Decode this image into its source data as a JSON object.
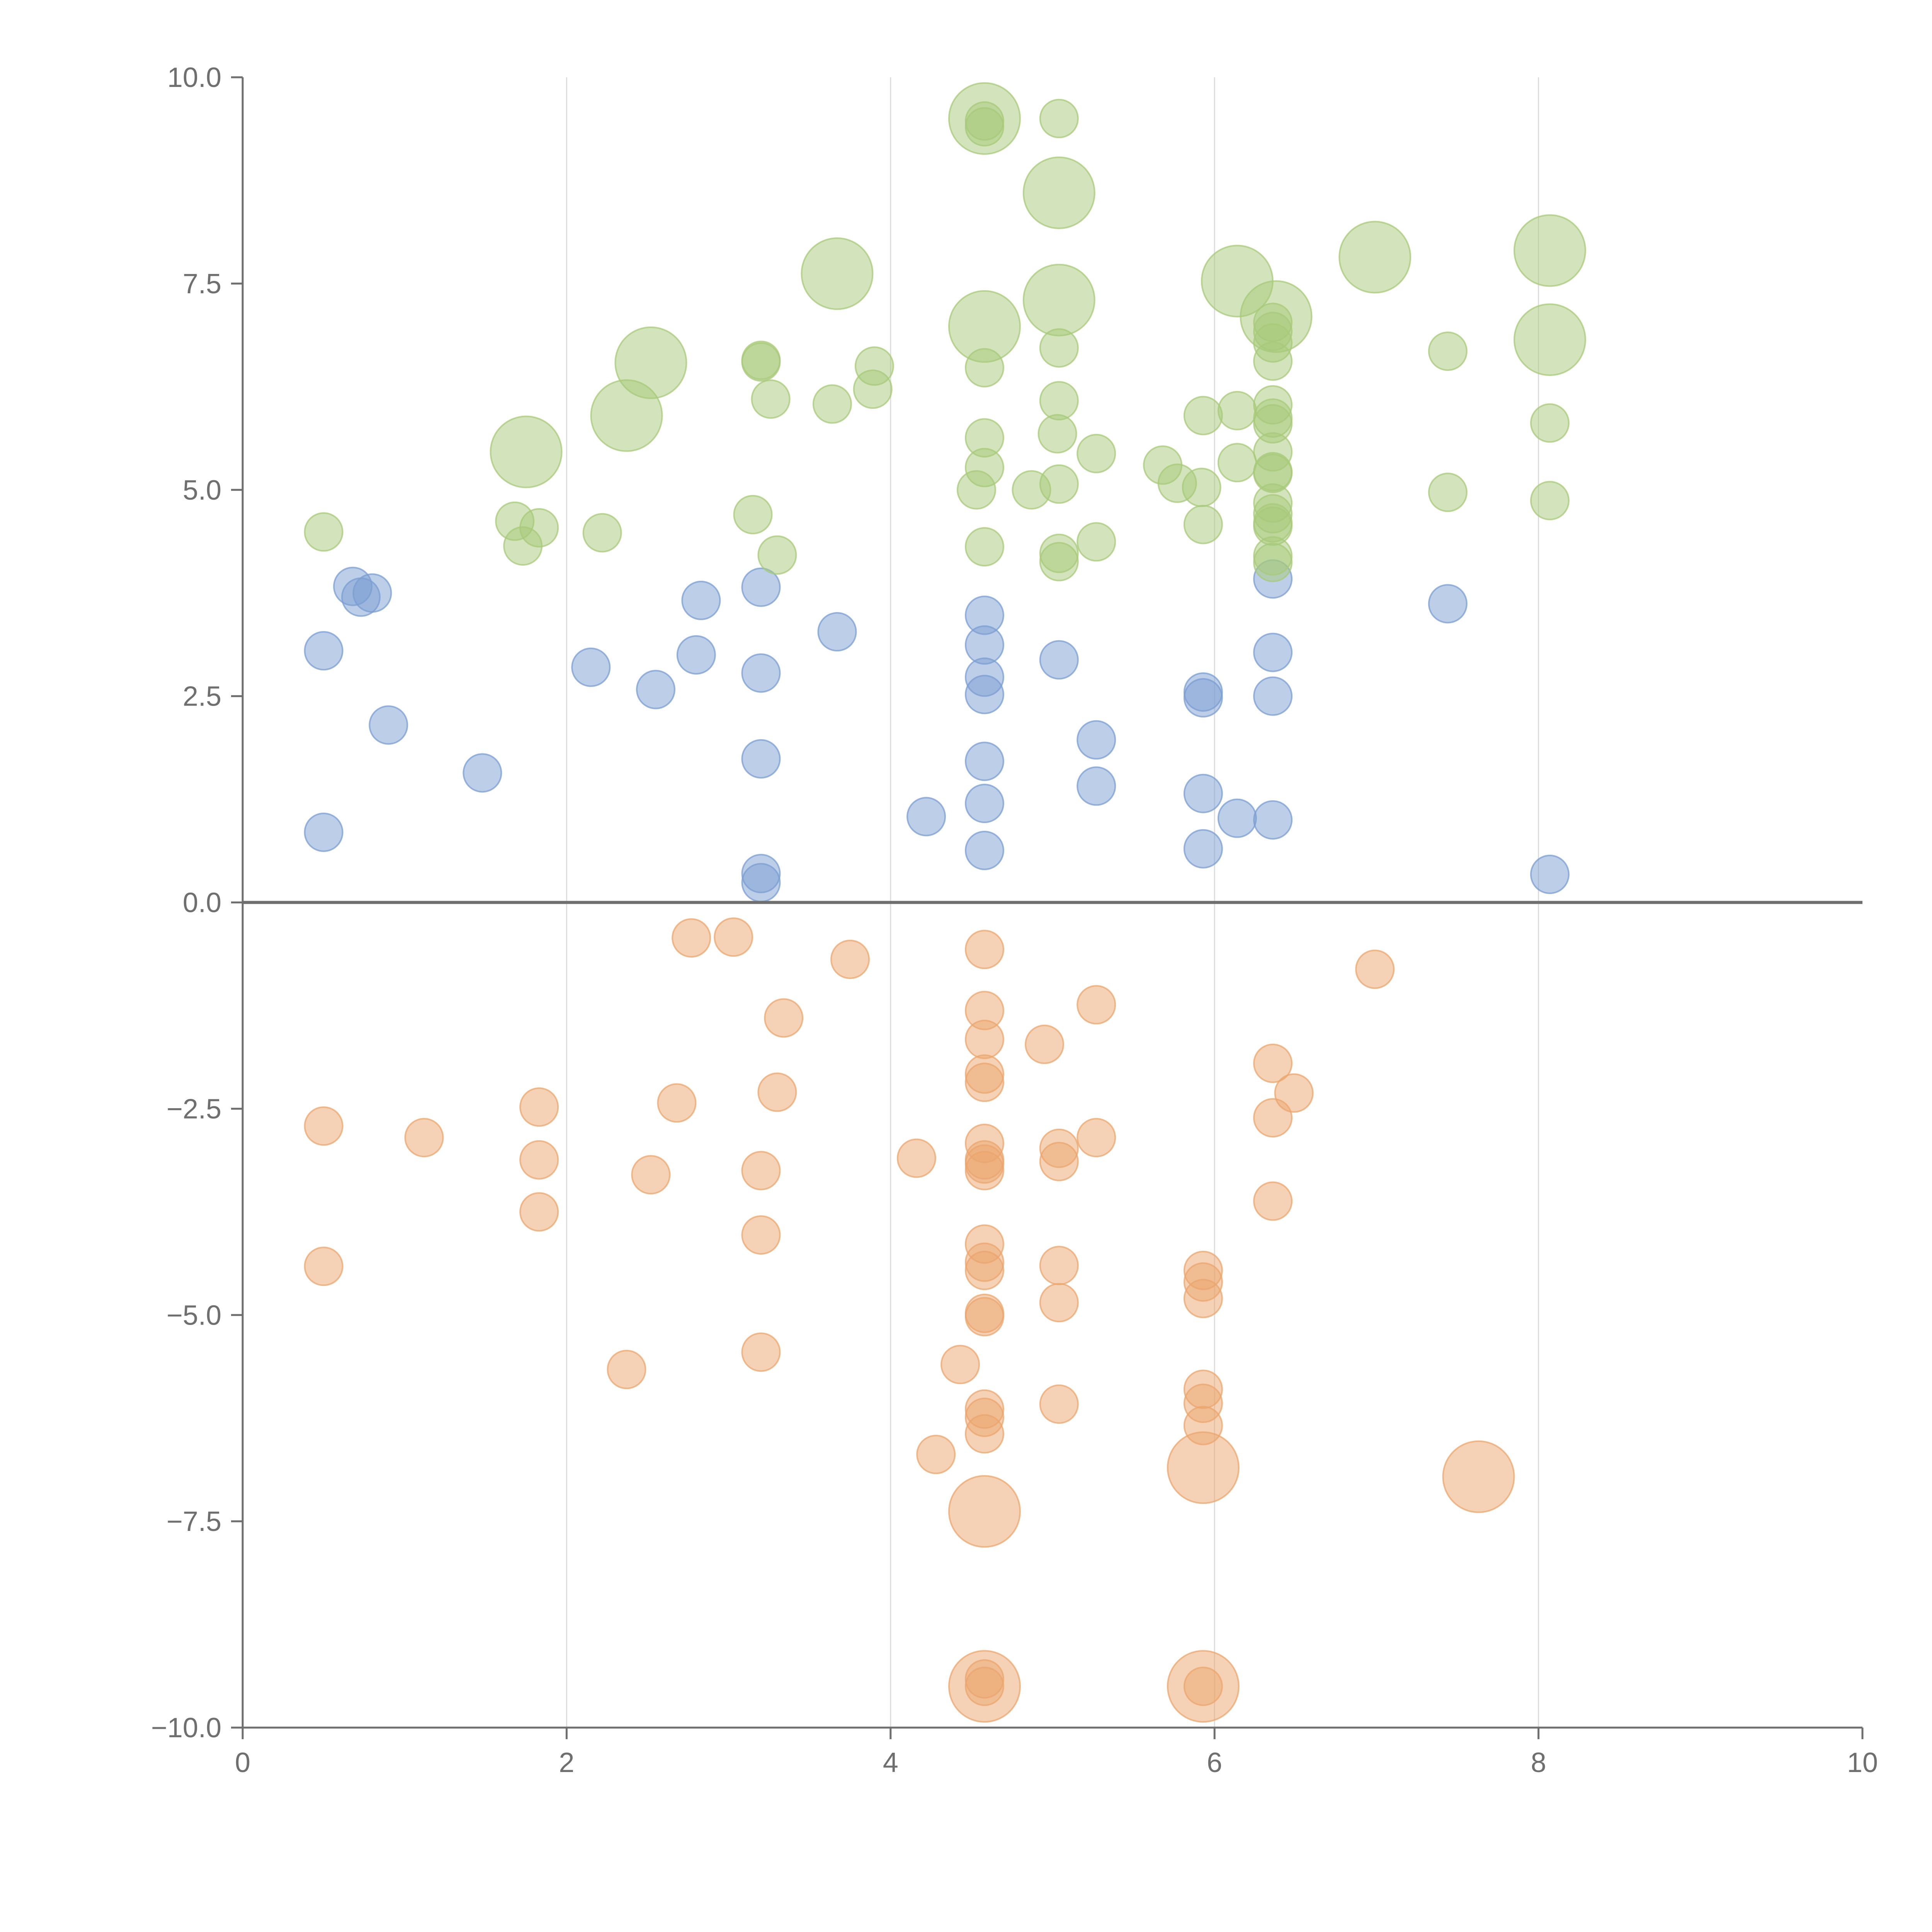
{
  "chart_data": {
    "type": "scatter",
    "title": "",
    "xlabel": "",
    "ylabel": "",
    "xlim": [
      0,
      10
    ],
    "ylim": [
      -10,
      10
    ],
    "x_ticks": [
      "0",
      "2",
      "4",
      "6",
      "8",
      "10"
    ],
    "y_ticks": [
      "10.0",
      "7.5",
      "5.0",
      "2.5",
      "0.0",
      "−2.5",
      "−5.0",
      "−7.5",
      "−10.0"
    ],
    "grid": "vertical",
    "zero_line": true,
    "series": [
      {
        "name": "blue",
        "color": "#7b9ed1",
        "points": [
          [
            0.5,
            3.05,
            1
          ],
          [
            0.68,
            3.83,
            1
          ],
          [
            0.73,
            3.7,
            1
          ],
          [
            0.8,
            3.75,
            1
          ],
          [
            0.9,
            2.15,
            1
          ],
          [
            0.5,
            0.85,
            1
          ],
          [
            1.48,
            1.57,
            1
          ],
          [
            2.15,
            2.85,
            1
          ],
          [
            2.55,
            2.58,
            1
          ],
          [
            2.8,
            3.0,
            1
          ],
          [
            2.83,
            3.66,
            1
          ],
          [
            3.2,
            3.82,
            1
          ],
          [
            3.2,
            2.78,
            1
          ],
          [
            3.2,
            1.74,
            1
          ],
          [
            3.2,
            0.35,
            1
          ],
          [
            3.2,
            0.24,
            1
          ],
          [
            3.67,
            3.28,
            1
          ],
          [
            4.22,
            1.04,
            1
          ],
          [
            4.58,
            3.48,
            1
          ],
          [
            4.58,
            3.12,
            1
          ],
          [
            4.58,
            2.73,
            1
          ],
          [
            4.58,
            2.52,
            1
          ],
          [
            4.58,
            1.71,
            1
          ],
          [
            4.58,
            1.2,
            1
          ],
          [
            4.58,
            0.63,
            1
          ],
          [
            5.04,
            2.94,
            1
          ],
          [
            5.27,
            1.97,
            1
          ],
          [
            5.27,
            1.41,
            1
          ],
          [
            5.93,
            2.55,
            1
          ],
          [
            5.93,
            2.48,
            1
          ],
          [
            5.93,
            1.32,
            1
          ],
          [
            5.93,
            0.65,
            1
          ],
          [
            6.14,
            1.02,
            1
          ],
          [
            6.36,
            3.92,
            1
          ],
          [
            6.36,
            3.03,
            1
          ],
          [
            6.36,
            2.5,
            1
          ],
          [
            6.36,
            1.0,
            1
          ],
          [
            7.44,
            3.62,
            1
          ],
          [
            8.07,
            0.34,
            1
          ]
        ]
      },
      {
        "name": "green",
        "color": "#a8c97a",
        "points": [
          [
            0.5,
            4.49,
            1
          ],
          [
            1.68,
            4.62,
            1
          ],
          [
            1.73,
            4.32,
            1
          ],
          [
            1.83,
            4.54,
            1
          ],
          [
            2.22,
            4.48,
            1
          ],
          [
            1.75,
            5.46,
            2
          ],
          [
            2.37,
            5.9,
            2
          ],
          [
            2.52,
            6.54,
            2
          ],
          [
            3.15,
            4.7,
            1
          ],
          [
            3.2,
            6.57,
            1
          ],
          [
            3.2,
            6.55,
            1
          ],
          [
            3.26,
            6.1,
            1
          ],
          [
            3.3,
            4.21,
            1
          ],
          [
            3.64,
            6.04,
            1
          ],
          [
            3.67,
            7.62,
            2
          ],
          [
            3.89,
            6.22,
            1
          ],
          [
            3.9,
            6.5,
            1
          ],
          [
            4.58,
            9.47,
            1
          ],
          [
            4.58,
            9.4,
            1
          ],
          [
            4.58,
            9.5,
            2
          ],
          [
            4.58,
            6.98,
            2
          ],
          [
            4.58,
            6.48,
            1
          ],
          [
            4.58,
            5.63,
            1
          ],
          [
            4.58,
            5.27,
            1
          ],
          [
            4.53,
            5.0,
            1
          ],
          [
            4.58,
            4.31,
            1
          ],
          [
            4.87,
            5.0,
            1
          ],
          [
            5.04,
            9.5,
            1
          ],
          [
            5.04,
            8.6,
            2
          ],
          [
            5.04,
            7.3,
            2
          ],
          [
            5.04,
            6.72,
            1
          ],
          [
            5.04,
            6.08,
            1
          ],
          [
            5.03,
            5.68,
            1
          ],
          [
            5.04,
            5.07,
            1
          ],
          [
            5.04,
            4.23,
            1
          ],
          [
            5.04,
            4.13,
            1
          ],
          [
            5.27,
            5.44,
            1
          ],
          [
            5.27,
            4.37,
            1
          ],
          [
            5.68,
            5.3,
            1
          ],
          [
            5.77,
            5.08,
            1
          ],
          [
            5.92,
            5.03,
            1
          ],
          [
            5.93,
            5.9,
            1
          ],
          [
            5.93,
            4.58,
            1
          ],
          [
            6.14,
            5.96,
            1
          ],
          [
            6.14,
            5.33,
            1
          ],
          [
            6.14,
            7.53,
            2
          ],
          [
            6.38,
            7.1,
            2
          ],
          [
            6.36,
            7.03,
            1
          ],
          [
            6.36,
            6.92,
            1
          ],
          [
            6.36,
            6.78,
            1
          ],
          [
            6.36,
            6.56,
            1
          ],
          [
            6.36,
            6.03,
            1
          ],
          [
            6.36,
            5.87,
            1
          ],
          [
            6.36,
            5.8,
            1
          ],
          [
            6.36,
            5.46,
            1
          ],
          [
            6.36,
            5.22,
            1
          ],
          [
            6.36,
            5.2,
            1
          ],
          [
            6.36,
            4.84,
            1
          ],
          [
            6.36,
            4.71,
            1
          ],
          [
            6.36,
            4.6,
            1
          ],
          [
            6.36,
            4.56,
            1
          ],
          [
            6.36,
            4.2,
            1
          ],
          [
            6.36,
            4.12,
            1
          ],
          [
            6.99,
            7.82,
            2
          ],
          [
            7.44,
            6.68,
            1
          ],
          [
            7.44,
            4.97,
            1
          ],
          [
            8.07,
            7.9,
            2
          ],
          [
            8.07,
            6.82,
            2
          ],
          [
            8.07,
            5.81,
            1
          ],
          [
            8.07,
            4.87,
            1
          ]
        ]
      },
      {
        "name": "orange",
        "color": "#eba56e",
        "points": [
          [
            0.5,
            -2.71,
            1
          ],
          [
            0.5,
            -4.41,
            1
          ],
          [
            1.12,
            -2.85,
            1
          ],
          [
            1.83,
            -2.48,
            1
          ],
          [
            1.83,
            -3.12,
            1
          ],
          [
            1.83,
            -3.75,
            1
          ],
          [
            2.37,
            -5.66,
            1
          ],
          [
            2.52,
            -3.3,
            1
          ],
          [
            2.68,
            -2.43,
            1
          ],
          [
            2.77,
            -0.43,
            1
          ],
          [
            3.03,
            -0.42,
            1
          ],
          [
            3.2,
            -3.25,
            1
          ],
          [
            3.2,
            -4.03,
            1
          ],
          [
            3.2,
            -5.45,
            1
          ],
          [
            3.3,
            -2.3,
            1
          ],
          [
            3.34,
            -1.4,
            1
          ],
          [
            3.75,
            -0.69,
            1
          ],
          [
            4.16,
            -3.1,
            1
          ],
          [
            4.28,
            -6.69,
            1
          ],
          [
            4.43,
            -5.6,
            1
          ],
          [
            4.58,
            -0.57,
            1
          ],
          [
            4.58,
            -1.31,
            1
          ],
          [
            4.58,
            -1.66,
            1
          ],
          [
            4.58,
            -2.08,
            1
          ],
          [
            4.58,
            -2.18,
            1
          ],
          [
            4.58,
            -2.92,
            1
          ],
          [
            4.58,
            -3.12,
            1
          ],
          [
            4.58,
            -3.17,
            1
          ],
          [
            4.58,
            -3.25,
            1
          ],
          [
            4.58,
            -4.14,
            1
          ],
          [
            4.58,
            -4.36,
            1
          ],
          [
            4.58,
            -4.46,
            1
          ],
          [
            4.58,
            -4.98,
            1
          ],
          [
            4.58,
            -5.02,
            1
          ],
          [
            4.58,
            -6.14,
            1
          ],
          [
            4.58,
            -6.24,
            1
          ],
          [
            4.58,
            -6.44,
            1
          ],
          [
            4.58,
            -7.38,
            2
          ],
          [
            4.58,
            -9.41,
            1
          ],
          [
            4.58,
            -9.5,
            1
          ],
          [
            4.58,
            -9.5,
            2
          ],
          [
            4.95,
            -1.72,
            1
          ],
          [
            5.04,
            -2.98,
            1
          ],
          [
            5.04,
            -3.14,
            1
          ],
          [
            5.04,
            -4.4,
            1
          ],
          [
            5.04,
            -4.85,
            1
          ],
          [
            5.04,
            -6.08,
            1
          ],
          [
            5.27,
            -1.24,
            1
          ],
          [
            5.27,
            -2.85,
            1
          ],
          [
            5.93,
            -4.46,
            1
          ],
          [
            5.93,
            -4.6,
            1
          ],
          [
            5.93,
            -4.8,
            1
          ],
          [
            5.93,
            -5.9,
            1
          ],
          [
            5.93,
            -6.07,
            1
          ],
          [
            5.93,
            -6.34,
            1
          ],
          [
            5.93,
            -6.85,
            2
          ],
          [
            5.93,
            -9.5,
            1
          ],
          [
            5.93,
            -9.5,
            2
          ],
          [
            6.36,
            -1.95,
            1
          ],
          [
            6.36,
            -2.61,
            1
          ],
          [
            6.36,
            -3.62,
            1
          ],
          [
            6.49,
            -2.31,
            1
          ],
          [
            6.99,
            -0.81,
            1
          ],
          [
            7.63,
            -6.96,
            2
          ]
        ]
      }
    ]
  }
}
